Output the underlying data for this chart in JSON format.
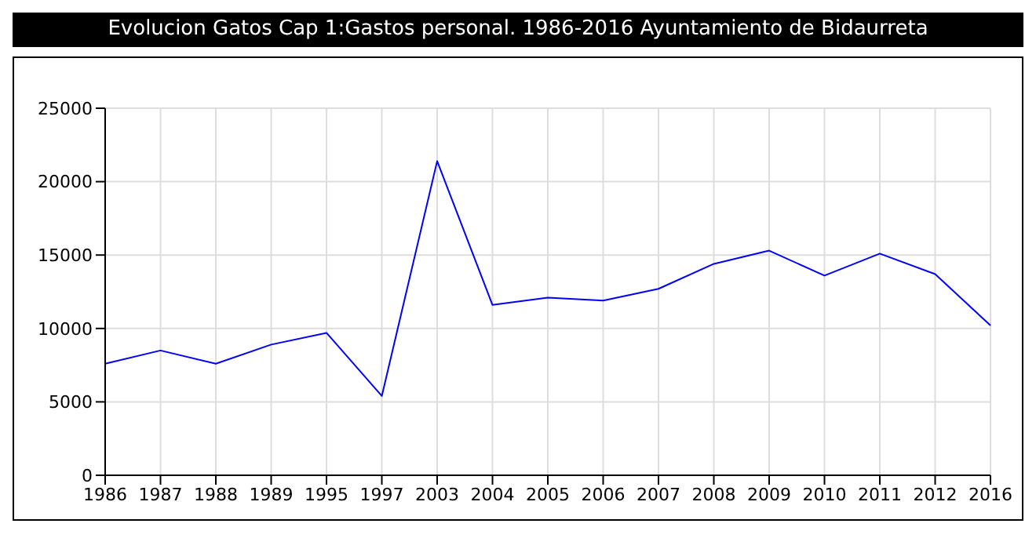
{
  "chart_data": {
    "type": "line",
    "title": "Evolucion Gatos Cap 1:Gastos personal. 1986-2016 Ayuntamiento de Bidaurreta",
    "categories": [
      "1986",
      "1987",
      "1988",
      "1989",
      "1995",
      "1997",
      "2003",
      "2004",
      "2005",
      "2006",
      "2007",
      "2008",
      "2009",
      "2010",
      "2011",
      "2012",
      "2016"
    ],
    "series": [
      {
        "color": "#0000ff",
        "values": [
          7600,
          8500,
          7600,
          8900,
          9700,
          5400,
          21400,
          11600,
          12100,
          11900,
          12700,
          14400,
          15300,
          13600,
          15100,
          13700,
          10200
        ]
      }
    ],
    "ylim": [
      0,
      25000
    ],
    "yticks": [
      0,
      5000,
      10000,
      15000,
      20000,
      25000
    ],
    "grid": true,
    "legend": false,
    "marker": "none",
    "line_style": "solid"
  }
}
